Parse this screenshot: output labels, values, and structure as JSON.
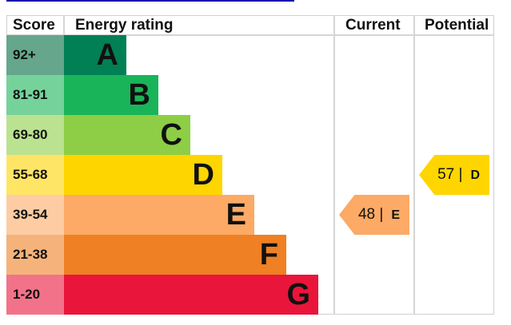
{
  "chart_data": {
    "type": "table",
    "headers": [
      "Score",
      "Energy rating",
      "Current",
      "Potential"
    ],
    "bands": [
      {
        "score": "92+",
        "letter": "A",
        "color": "#008054",
        "tint": "#66a68c"
      },
      {
        "score": "81-91",
        "letter": "B",
        "color": "#19b459",
        "tint": "#75d29b"
      },
      {
        "score": "69-80",
        "letter": "C",
        "color": "#8dce46",
        "tint": "#bbe290"
      },
      {
        "score": "55-68",
        "letter": "D",
        "color": "#ffd500",
        "tint": "#ffe566"
      },
      {
        "score": "39-54",
        "letter": "E",
        "color": "#fcaa65",
        "tint": "#fdcca3"
      },
      {
        "score": "21-38",
        "letter": "F",
        "color": "#ef8023",
        "tint": "#f5b37b"
      },
      {
        "score": "1-20",
        "letter": "G",
        "color": "#e9153b",
        "tint": "#f27389"
      }
    ],
    "current": {
      "value": 48,
      "value_label": "48 |",
      "rating": "E",
      "color": "#fcaa65"
    },
    "potential": {
      "value": 57,
      "value_label": "57 |",
      "rating": "D",
      "color": "#ffd500"
    }
  }
}
